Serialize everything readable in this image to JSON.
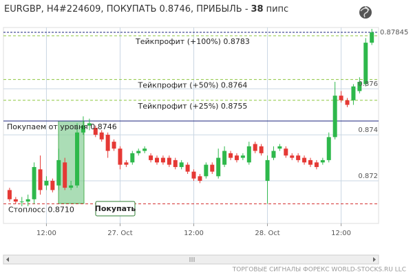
{
  "chart_data": {
    "type": "candlestick",
    "title": "EURGBP, H4#224609, ПОКУПАТЬ 0.8746, ПРИБЫЛЬ -",
    "profit": 38,
    "profit_unit": "пипс",
    "open": [
      0.8716,
      0.8712,
      0.8711,
      0.8711,
      0.8712,
      0.8725,
      0.8718,
      0.872,
      0.8718,
      0.8728,
      0.8717,
      0.8718,
      0.8741,
      0.8744,
      0.8743,
      0.8741,
      0.874,
      0.8737,
      0.8734,
      0.8728,
      0.8728,
      0.8732,
      0.8733,
      0.8731,
      0.873,
      0.873,
      0.873,
      0.8729,
      0.8726,
      0.8727,
      0.8724,
      0.8722,
      0.8722,
      0.8727,
      0.8722,
      0.8727,
      0.8732,
      0.8731,
      0.873,
      0.8728,
      0.8736,
      0.8735,
      0.872,
      0.873,
      0.8734,
      0.8734,
      0.8731,
      0.8731,
      0.873,
      0.8729,
      0.8728,
      0.8728,
      0.8729,
      0.8739,
      0.8757,
      0.8755,
      0.8755,
      0.8759,
      0.8762,
      0.878
    ],
    "high": [
      0.8717,
      0.8713,
      0.8713,
      0.8714,
      0.8728,
      0.8731,
      0.8722,
      0.8721,
      0.8734,
      0.873,
      0.872,
      0.8745,
      0.8748,
      0.8747,
      0.8744,
      0.8742,
      0.8741,
      0.8738,
      0.8735,
      0.8729,
      0.8733,
      0.8734,
      0.8735,
      0.8732,
      0.8731,
      0.8731,
      0.8731,
      0.873,
      0.8729,
      0.8728,
      0.8725,
      0.8723,
      0.8728,
      0.8728,
      0.8734,
      0.8735,
      0.8733,
      0.8732,
      0.8732,
      0.8737,
      0.8737,
      0.8736,
      0.8731,
      0.8735,
      0.8736,
      0.8735,
      0.8732,
      0.8732,
      0.8731,
      0.873,
      0.8729,
      0.873,
      0.8741,
      0.8763,
      0.8759,
      0.8756,
      0.8762,
      0.8765,
      0.8782,
      0.8786
    ],
    "low": [
      0.8711,
      0.871,
      0.8709,
      0.8709,
      0.871,
      0.8714,
      0.8716,
      0.8715,
      0.8716,
      0.8716,
      0.8716,
      0.8717,
      0.874,
      0.8742,
      0.8739,
      0.8737,
      0.873,
      0.8733,
      0.8725,
      0.8726,
      0.8727,
      0.8731,
      0.8732,
      0.8728,
      0.8727,
      0.8727,
      0.8726,
      0.8725,
      0.8725,
      0.8723,
      0.872,
      0.8719,
      0.8721,
      0.8723,
      0.8721,
      0.8726,
      0.8729,
      0.8728,
      0.8729,
      0.8727,
      0.8732,
      0.8731,
      0.871,
      0.8729,
      0.8733,
      0.873,
      0.8729,
      0.8728,
      0.8727,
      0.8726,
      0.8725,
      0.8727,
      0.8728,
      0.8738,
      0.8754,
      0.8752,
      0.8753,
      0.8758,
      0.8761,
      0.8779
    ],
    "close": [
      0.8712,
      0.8711,
      0.8711,
      0.8712,
      0.8726,
      0.8716,
      0.872,
      0.8716,
      0.8729,
      0.8717,
      0.8718,
      0.8741,
      0.8744,
      0.8745,
      0.874,
      0.8738,
      0.8733,
      0.8734,
      0.8727,
      0.8727,
      0.8732,
      0.8733,
      0.8734,
      0.8729,
      0.8728,
      0.8728,
      0.8727,
      0.8726,
      0.8728,
      0.8724,
      0.8721,
      0.872,
      0.8727,
      0.8724,
      0.873,
      0.8733,
      0.873,
      0.8729,
      0.8731,
      0.8735,
      0.8733,
      0.8732,
      0.8729,
      0.8733,
      0.8735,
      0.8731,
      0.873,
      0.8729,
      0.8728,
      0.8727,
      0.8726,
      0.8729,
      0.8739,
      0.8757,
      0.8755,
      0.8753,
      0.8761,
      0.8763,
      0.878,
      0.87845
    ],
    "up_color": "#2eb84b",
    "down_color": "#e53935",
    "xlim": [
      -1,
      60.1
    ],
    "xticks": [
      {
        "value": 6,
        "label": "12:00"
      },
      {
        "value": 18,
        "label": "27. Oct"
      },
      {
        "value": 30,
        "label": "12:00"
      },
      {
        "value": 42,
        "label": "28. Oct"
      },
      {
        "value": 54,
        "label": "12:00"
      }
    ],
    "ylim": [
      0.87015,
      0.87866
    ],
    "yticks": [
      0.872,
      0.874,
      0.876
    ],
    "grid": true,
    "current_price": 0.87845,
    "take_profits": [
      {
        "label": "Тейкпрофит (+100%) 0.8783",
        "value": 0.8783,
        "color": "#8cc63f"
      },
      {
        "label": "Тейкпрофит (+50%) 0.8764",
        "value": 0.8764,
        "color": "#8cc63f"
      },
      {
        "label": "Тейкпрофит (+25%) 0.8755",
        "value": 0.8755,
        "color": "#8cc63f"
      }
    ],
    "entry": {
      "label": "Покупаем от уровня 0.8746",
      "value": 0.8746,
      "color": "#1a237e"
    },
    "stop_loss": {
      "label": "Стоплосс 0.8710",
      "value": 0.871,
      "color": "#d32f2f"
    },
    "button": "Покупать",
    "footer": "ТОРГОВЫЕ СИГНАЛЫ ФОРЕКС WORLD-STOCKS.RU LLC"
  }
}
